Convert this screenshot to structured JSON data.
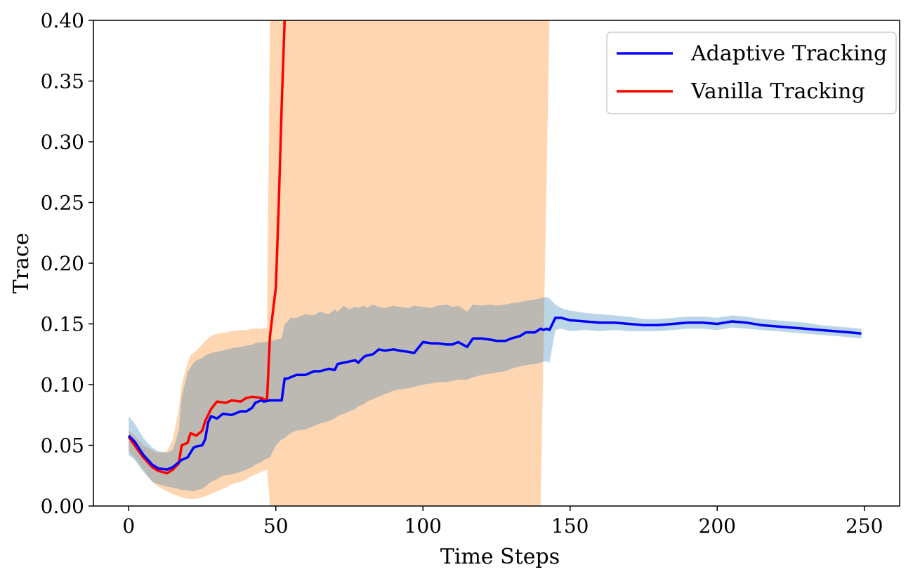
{
  "chart_data": {
    "type": "line",
    "title": "",
    "xlabel": "Time Steps",
    "ylabel": "Trace",
    "xlim": [
      -12,
      262
    ],
    "ylim": [
      0,
      0.4
    ],
    "xticks": [
      0,
      50,
      100,
      150,
      200,
      250
    ],
    "xtick_labels": [
      "0",
      "50",
      "100",
      "150",
      "200",
      "250"
    ],
    "yticks": [
      0,
      0.05,
      0.1,
      0.15,
      0.2,
      0.25,
      0.3,
      0.35,
      0.4
    ],
    "ytick_labels": [
      "0.00",
      "0.05",
      "0.10",
      "0.15",
      "0.20",
      "0.25",
      "0.30",
      "0.35",
      "0.40"
    ],
    "grid": false,
    "legend_position": "top-right",
    "series": [
      {
        "name": "Adaptive Tracking",
        "color": "#0000ff",
        "band_color": "#1f77b4",
        "x": [
          0,
          2,
          5,
          8,
          10,
          13,
          15,
          17,
          18,
          20,
          22,
          23,
          25,
          26,
          27,
          28,
          30,
          32,
          35,
          38,
          40,
          42,
          43,
          45,
          46,
          48,
          50,
          52,
          53,
          54,
          55,
          57,
          60,
          63,
          65,
          68,
          70,
          71,
          73,
          75,
          77,
          78,
          80,
          81,
          83,
          85,
          87,
          90,
          92,
          95,
          97,
          100,
          103,
          105,
          108,
          110,
          112,
          115,
          117,
          120,
          123,
          125,
          128,
          130,
          133,
          135,
          138,
          140,
          141,
          142,
          143,
          145,
          147,
          150,
          155,
          160,
          165,
          170,
          175,
          180,
          185,
          190,
          195,
          200,
          205,
          210,
          215,
          220,
          225,
          230,
          235,
          240,
          245,
          249
        ],
        "values": [
          0.058,
          0.053,
          0.042,
          0.034,
          0.031,
          0.03,
          0.032,
          0.036,
          0.038,
          0.04,
          0.048,
          0.049,
          0.05,
          0.055,
          0.069,
          0.074,
          0.072,
          0.076,
          0.075,
          0.078,
          0.078,
          0.081,
          0.085,
          0.087,
          0.086,
          0.087,
          0.087,
          0.087,
          0.105,
          0.105,
          0.106,
          0.108,
          0.108,
          0.111,
          0.111,
          0.113,
          0.112,
          0.117,
          0.118,
          0.119,
          0.12,
          0.118,
          0.123,
          0.124,
          0.125,
          0.129,
          0.128,
          0.129,
          0.128,
          0.127,
          0.126,
          0.135,
          0.134,
          0.134,
          0.133,
          0.133,
          0.135,
          0.131,
          0.138,
          0.138,
          0.137,
          0.136,
          0.136,
          0.138,
          0.14,
          0.143,
          0.143,
          0.146,
          0.145,
          0.146,
          0.145,
          0.155,
          0.155,
          0.153,
          0.152,
          0.151,
          0.151,
          0.15,
          0.149,
          0.149,
          0.15,
          0.151,
          0.151,
          0.15,
          0.152,
          0.151,
          0.149,
          0.148,
          0.147,
          0.146,
          0.145,
          0.144,
          0.143,
          0.142
        ],
        "lower": [
          0.042,
          0.038,
          0.028,
          0.02,
          0.018,
          0.016,
          0.015,
          0.014,
          0.013,
          0.013,
          0.012,
          0.013,
          0.014,
          0.016,
          0.018,
          0.02,
          0.022,
          0.025,
          0.026,
          0.028,
          0.03,
          0.032,
          0.034,
          0.036,
          0.038,
          0.04,
          0.05,
          0.055,
          0.056,
          0.058,
          0.06,
          0.062,
          0.063,
          0.066,
          0.068,
          0.07,
          0.072,
          0.074,
          0.076,
          0.078,
          0.08,
          0.082,
          0.084,
          0.086,
          0.088,
          0.09,
          0.092,
          0.095,
          0.096,
          0.097,
          0.098,
          0.1,
          0.101,
          0.102,
          0.102,
          0.103,
          0.104,
          0.104,
          0.106,
          0.108,
          0.109,
          0.11,
          0.111,
          0.113,
          0.115,
          0.116,
          0.117,
          0.118,
          0.119,
          0.119,
          0.118,
          0.145,
          0.146,
          0.144,
          0.145,
          0.144,
          0.145,
          0.144,
          0.144,
          0.144,
          0.145,
          0.146,
          0.146,
          0.145,
          0.147,
          0.146,
          0.145,
          0.144,
          0.143,
          0.142,
          0.141,
          0.14,
          0.139,
          0.138
        ],
        "upper": [
          0.074,
          0.068,
          0.056,
          0.048,
          0.045,
          0.044,
          0.046,
          0.062,
          0.09,
          0.11,
          0.118,
          0.12,
          0.122,
          0.124,
          0.125,
          0.126,
          0.127,
          0.128,
          0.13,
          0.131,
          0.132,
          0.133,
          0.134,
          0.135,
          0.135,
          0.136,
          0.137,
          0.138,
          0.15,
          0.152,
          0.155,
          0.155,
          0.158,
          0.157,
          0.16,
          0.158,
          0.162,
          0.16,
          0.165,
          0.162,
          0.164,
          0.163,
          0.165,
          0.163,
          0.166,
          0.164,
          0.163,
          0.165,
          0.164,
          0.163,
          0.165,
          0.164,
          0.163,
          0.165,
          0.166,
          0.164,
          0.165,
          0.16,
          0.166,
          0.165,
          0.166,
          0.165,
          0.166,
          0.167,
          0.168,
          0.169,
          0.17,
          0.171,
          0.172,
          0.172,
          0.171,
          0.166,
          0.163,
          0.161,
          0.159,
          0.158,
          0.157,
          0.156,
          0.154,
          0.154,
          0.155,
          0.156,
          0.156,
          0.155,
          0.157,
          0.156,
          0.154,
          0.153,
          0.152,
          0.151,
          0.149,
          0.148,
          0.147,
          0.146
        ]
      },
      {
        "name": "Vanilla Tracking",
        "color": "#ff0000",
        "band_color": "#ff7f0e",
        "x": [
          0,
          2,
          5,
          8,
          10,
          13,
          15,
          17,
          18,
          20,
          21,
          23,
          25,
          26,
          28,
          30,
          33,
          35,
          38,
          40,
          42,
          45,
          47,
          48,
          50,
          51,
          52,
          53
        ],
        "values": [
          0.057,
          0.05,
          0.04,
          0.032,
          0.029,
          0.027,
          0.03,
          0.035,
          0.05,
          0.052,
          0.06,
          0.058,
          0.062,
          0.07,
          0.08,
          0.086,
          0.085,
          0.087,
          0.086,
          0.089,
          0.09,
          0.089,
          0.087,
          0.14,
          0.18,
          0.25,
          0.33,
          0.405
        ],
        "lower": [
          0.045,
          0.04,
          0.03,
          0.02,
          0.016,
          0.012,
          0.01,
          0.008,
          0.007,
          0.006,
          0.006,
          0.006,
          0.007,
          0.008,
          0.01,
          0.012,
          0.015,
          0.018,
          0.02,
          0.022,
          0.025,
          0.028,
          0.03,
          0.0,
          0.0,
          0.0,
          0.0,
          0.0
        ],
        "upper": [
          0.062,
          0.058,
          0.05,
          0.046,
          0.044,
          0.045,
          0.055,
          0.08,
          0.1,
          0.118,
          0.124,
          0.128,
          0.133,
          0.136,
          0.14,
          0.142,
          0.143,
          0.144,
          0.145,
          0.145,
          0.146,
          0.146,
          0.147,
          0.4,
          0.4,
          0.4,
          0.4,
          0.4
        ],
        "band_extension": {
          "x": [
            48,
            143,
            140
          ],
          "note": "orange band spans full axis height from x=48 to x=143 (top) / x=140 (bottom)"
        }
      }
    ]
  }
}
